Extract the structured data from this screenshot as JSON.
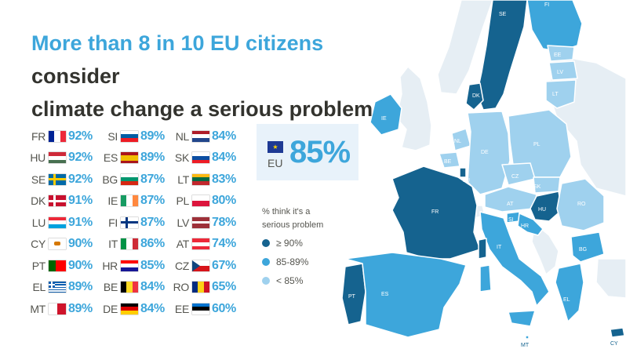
{
  "title": {
    "highlight": "More than 8 in 10 EU citizens",
    "line1_rest": " consider",
    "line2": "climate change a serious problem"
  },
  "colors": {
    "band_high": "#15638f",
    "band_mid": "#3da6db",
    "band_low": "#9fd1ee",
    "outside": "#e6eef4",
    "accent": "#3da6db",
    "text": "#33332e"
  },
  "columns": [
    [
      {
        "code": "FR",
        "value": "92%",
        "band": "high",
        "flag": "v:#002395,#ffffff,#ed2939"
      },
      {
        "code": "HU",
        "value": "92%",
        "band": "high",
        "flag": "h:#ce2939,#ffffff,#477050"
      },
      {
        "code": "SE",
        "value": "92%",
        "band": "high",
        "flag": "cross:#006aa7,#fecc00"
      },
      {
        "code": "DK",
        "value": "91%",
        "band": "high",
        "flag": "cross:#c8102e,#ffffff"
      },
      {
        "code": "LU",
        "value": "91%",
        "band": "high",
        "flag": "h:#ed2939,#ffffff,#00a1de"
      },
      {
        "code": "CY",
        "value": "90%",
        "band": "high",
        "flag": "cy"
      },
      {
        "code": "PT",
        "value": "90%",
        "band": "high",
        "flag": "pt"
      },
      {
        "code": "EL",
        "value": "89%",
        "band": "mid",
        "flag": "el"
      },
      {
        "code": "MT",
        "value": "89%",
        "band": "mid",
        "flag": "v:#ffffff,#cf142b"
      }
    ],
    [
      {
        "code": "SI",
        "value": "89%",
        "band": "mid",
        "flag": "h:#ffffff,#005da4,#ed1c24"
      },
      {
        "code": "ES",
        "value": "89%",
        "band": "mid",
        "flag": "h:#aa151b,#f1bf00,#f1bf00,#aa151b"
      },
      {
        "code": "BG",
        "value": "87%",
        "band": "mid",
        "flag": "h:#ffffff,#00966e,#d62612"
      },
      {
        "code": "IE",
        "value": "87%",
        "band": "mid",
        "flag": "v:#169b62,#ffffff,#ff883e"
      },
      {
        "code": "FI",
        "value": "87%",
        "band": "mid",
        "flag": "cross:#ffffff,#003580"
      },
      {
        "code": "IT",
        "value": "86%",
        "band": "mid",
        "flag": "v:#009246,#ffffff,#ce2b37"
      },
      {
        "code": "HR",
        "value": "85%",
        "band": "mid",
        "flag": "h:#ff0000,#ffffff,#171796"
      },
      {
        "code": "BE",
        "value": "84%",
        "band": "low",
        "flag": "v:#000000,#fdda24,#ef3340"
      },
      {
        "code": "DE",
        "value": "84%",
        "band": "low",
        "flag": "h:#000000,#dd0000,#ffce00"
      }
    ],
    [
      {
        "code": "NL",
        "value": "84%",
        "band": "low",
        "flag": "h:#ae1c28,#ffffff,#21468b"
      },
      {
        "code": "SK",
        "value": "84%",
        "band": "low",
        "flag": "h:#ffffff,#0b4ea2,#ee1c25"
      },
      {
        "code": "LT",
        "value": "83%",
        "band": "low",
        "flag": "h:#fdb913,#006a44,#c1272d"
      },
      {
        "code": "PL",
        "value": "80%",
        "band": "low",
        "flag": "h:#ffffff,#dc143c"
      },
      {
        "code": "LV",
        "value": "78%",
        "band": "low",
        "flag": "h:#9e3039,#9e3039,#ffffff,#9e3039,#9e3039"
      },
      {
        "code": "AT",
        "value": "74%",
        "band": "low",
        "flag": "h:#ed2939,#ffffff,#ed2939"
      },
      {
        "code": "CZ",
        "value": "67%",
        "band": "low",
        "flag": "cz"
      },
      {
        "code": "RO",
        "value": "65%",
        "band": "low",
        "flag": "v:#002b7f,#fcd116,#ce1126"
      },
      {
        "code": "EE",
        "value": "60%",
        "band": "low",
        "flag": "h:#0072ce,#000000,#ffffff"
      }
    ]
  ],
  "eu": {
    "code": "EU",
    "value": "85%"
  },
  "legend": {
    "title_line1": "% think it's a",
    "title_line2": "serious problem",
    "items": [
      {
        "label": "≥ 90%",
        "band": "high"
      },
      {
        "label": "85-89%",
        "band": "mid"
      },
      {
        "label": "< 85%",
        "band": "low"
      }
    ]
  },
  "map_labels": {
    "SE": "SE",
    "FI": "FI",
    "EE": "EE",
    "LV": "LV",
    "LT": "LT",
    "DK": "DK",
    "IE": "IE",
    "NL": "NL",
    "DE": "DE",
    "PL": "PL",
    "BE": "BE",
    "LU": "LU",
    "CZ": "CZ",
    "SK": "SK",
    "AT": "AT",
    "HU": "HU",
    "RO": "RO",
    "FR": "FR",
    "SI": "SI",
    "HR": "HR",
    "BG": "BG",
    "IT": "IT",
    "PT": "PT",
    "ES": "ES",
    "EL": "EL",
    "CY": "CY",
    "MT": "MT"
  }
}
